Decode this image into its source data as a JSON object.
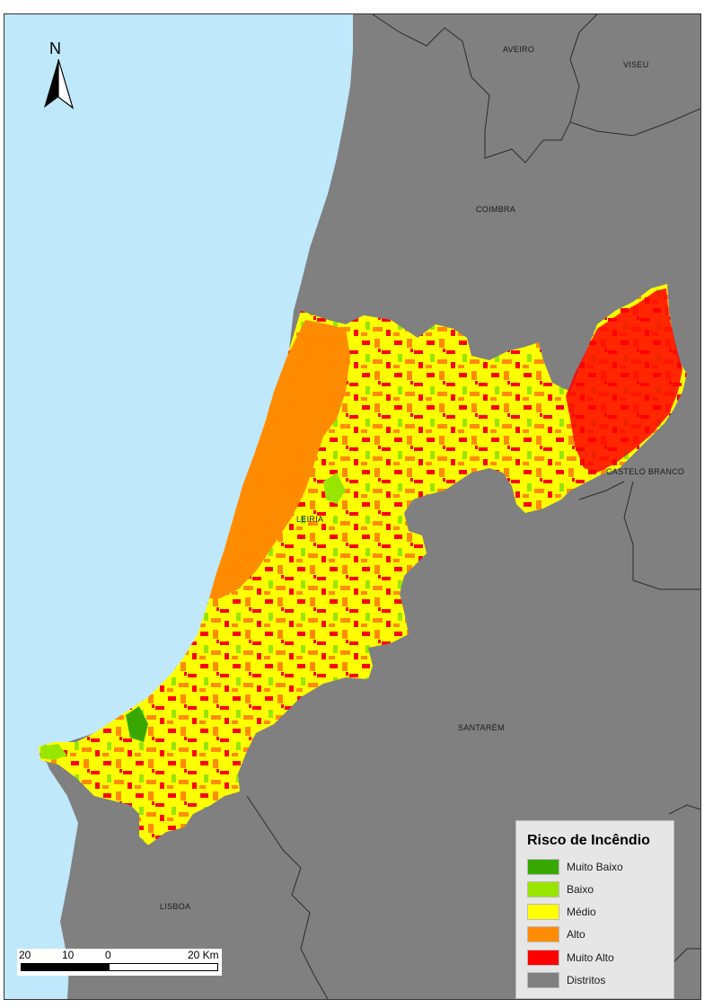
{
  "map": {
    "north_label": "N",
    "districts": {
      "aveiro": "AVEIRO",
      "viseu": "VISEU",
      "coimbra": "COIMBRA",
      "castelo_branco": "CASTELO BRANCO",
      "leiria": "LEIRIA",
      "santarem": "SANTARÉM",
      "lisboa": "LISBOA"
    }
  },
  "legend": {
    "title": "Risco de Incêndio",
    "items": [
      {
        "label": "Muito Baixo",
        "color": "#38a800"
      },
      {
        "label": "Baixo",
        "color": "#98e600"
      },
      {
        "label": "Médio",
        "color": "#ffff00"
      },
      {
        "label": "Alto",
        "color": "#ff8c00"
      },
      {
        "label": "Muito Alto",
        "color": "#ff0000"
      },
      {
        "label": "Distritos",
        "color": "#808080"
      }
    ]
  },
  "scale": {
    "ticks": [
      "20",
      "10",
      "0",
      "20 Km"
    ]
  },
  "colors": {
    "sea": "#bfe8fb",
    "land": "#808080",
    "border": "#2b2b2b"
  }
}
